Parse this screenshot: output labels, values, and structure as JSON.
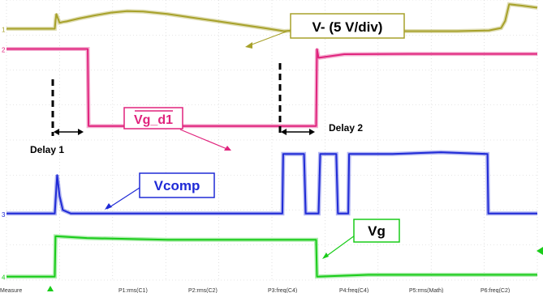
{
  "chart_data": {
    "type": "line",
    "title": "",
    "xlabel": "",
    "ylabel": "",
    "grid": true,
    "series": [
      {
        "name": "V- (5 V/div)",
        "color": "#a7a12a",
        "channel_marker": "1",
        "x": [
          0,
          60,
          61,
          62,
          66,
          70,
          75,
          90,
          110,
          130,
          150,
          170,
          200,
          230,
          260,
          290,
          320,
          345,
          350,
          400,
          450,
          500,
          540,
          560,
          600,
          615,
          620,
          625,
          640,
          660
        ],
        "y": [
          8.2,
          8.2,
          6.0,
          4.0,
          6.5,
          6.3,
          6.1,
          5.3,
          4.4,
          3.6,
          3.2,
          3.3,
          4.0,
          5.0,
          6.0,
          7.0,
          8.0,
          8.9,
          8.8,
          8.8,
          8.8,
          8.9,
          8.9,
          8.9,
          8.7,
          8.0,
          6.0,
          1.2,
          1.6,
          2.2
        ]
      },
      {
        "name": "Vg_d1",
        "color": "#e0237d",
        "channel_marker": "2",
        "x": [
          0,
          55,
          60,
          100,
          101,
          102,
          384,
          385,
          386,
          388,
          420,
          500,
          580,
          615,
          640,
          660
        ],
        "y": [
          14.0,
          14.0,
          14.0,
          14.0,
          14.0,
          36.0,
          36.0,
          36.0,
          14.0,
          16.5,
          15.5,
          15.4,
          15.4,
          15.4,
          15.4,
          15.4
        ]
      },
      {
        "name": "Vcomp",
        "color": "#1f2ad6",
        "channel_marker": "3",
        "x": [
          0,
          60,
          63,
          66,
          70,
          80,
          100,
          200,
          300,
          343,
          344,
          370,
          372,
          374,
          388,
          390,
          392,
          410,
          412,
          414,
          425,
          426,
          480,
          540,
          598,
          599,
          601,
          640,
          660
        ],
        "y": [
          61.0,
          61.0,
          50.0,
          56.0,
          60.0,
          61.0,
          61.0,
          61.0,
          61.0,
          61.0,
          44.0,
          44.0,
          61.0,
          61.0,
          61.0,
          44.0,
          44.0,
          44.0,
          61.0,
          61.0,
          61.0,
          44.0,
          44.0,
          43.5,
          44.0,
          61.0,
          61.0,
          61.0,
          61.0
        ]
      },
      {
        "name": "Vg",
        "color": "#19cc19",
        "channel_marker": "4",
        "x": [
          0,
          60,
          61,
          62,
          100,
          200,
          300,
          385,
          386,
          387,
          450,
          550,
          660
        ],
        "y": [
          79.0,
          79.0,
          67.5,
          67.5,
          68.0,
          68.5,
          68.5,
          68.5,
          79.0,
          79.0,
          78.5,
          78.5,
          78.5
        ]
      }
    ],
    "annotations": [
      {
        "text": "V- (5 V/div)",
        "series": "V- (5 V/div)"
      },
      {
        "text": "Vg_d1",
        "series": "Vg_d1",
        "overline": true
      },
      {
        "text": "Vcomp",
        "series": "Vcomp"
      },
      {
        "text": "Vg",
        "series": "Vg"
      },
      {
        "text": "Delay 1"
      },
      {
        "text": "Delay 2"
      }
    ],
    "bottom_readout": [
      "Measure",
      "P1:rms(C1)",
      "P2:rms(C2)",
      "P3:freq(C4)",
      "P4:freq(C4)",
      "P5:rms(Math)",
      "P6:freq(C2)"
    ]
  }
}
